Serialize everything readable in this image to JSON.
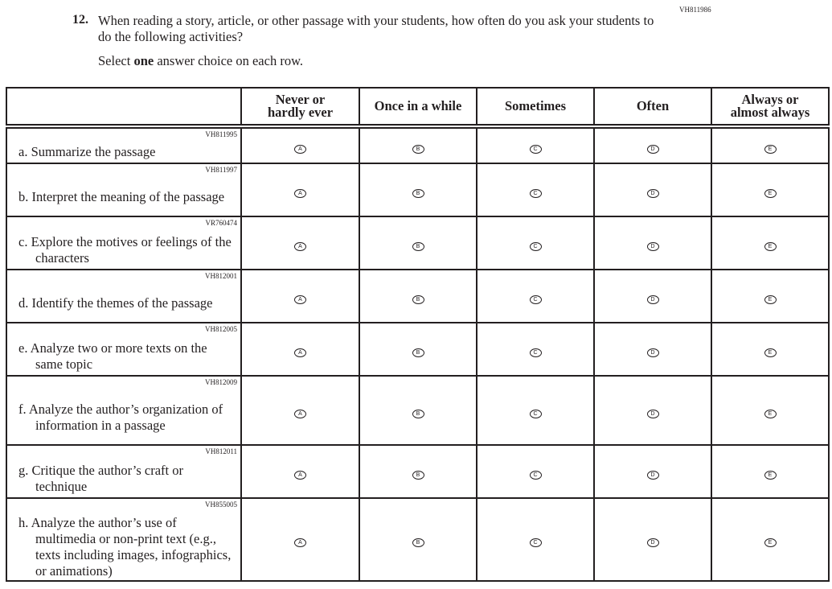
{
  "question": {
    "id": "VH811986",
    "number": "12.",
    "text": "When reading a story, article, or other passage with your students, how often do you ask your students to do the following activities?",
    "instruction_pre": "Select ",
    "instruction_bold": "one",
    "instruction_post": " answer choice on each row."
  },
  "columns": [
    "Never or hardly ever",
    "Once in a while",
    "Sometimes",
    "Often",
    "Always or almost always"
  ],
  "bubble_letters": [
    "A",
    "B",
    "C",
    "D",
    "E"
  ],
  "rows": [
    {
      "code": "VH811995",
      "label": "a. Summarize the passage"
    },
    {
      "code": "VH811997",
      "label": "b. Interpret the meaning of the passage"
    },
    {
      "code": "VR760474",
      "label": "c. Explore the motives or feelings of the characters"
    },
    {
      "code": "VH812001",
      "label": "d. Identify the themes of the passage"
    },
    {
      "code": "VH812005",
      "label": "e. Analyze two or more texts on the same topic"
    },
    {
      "code": "VH812009",
      "label": "f. Analyze the author’s organization of information in a passage"
    },
    {
      "code": "VH812011",
      "label": "g. Critique the author’s craft or technique"
    },
    {
      "code": "VH855005",
      "label": "h. Analyze the author’s use of multimedia or non-print text (e.g., texts including images, infographics, or animations)"
    }
  ]
}
